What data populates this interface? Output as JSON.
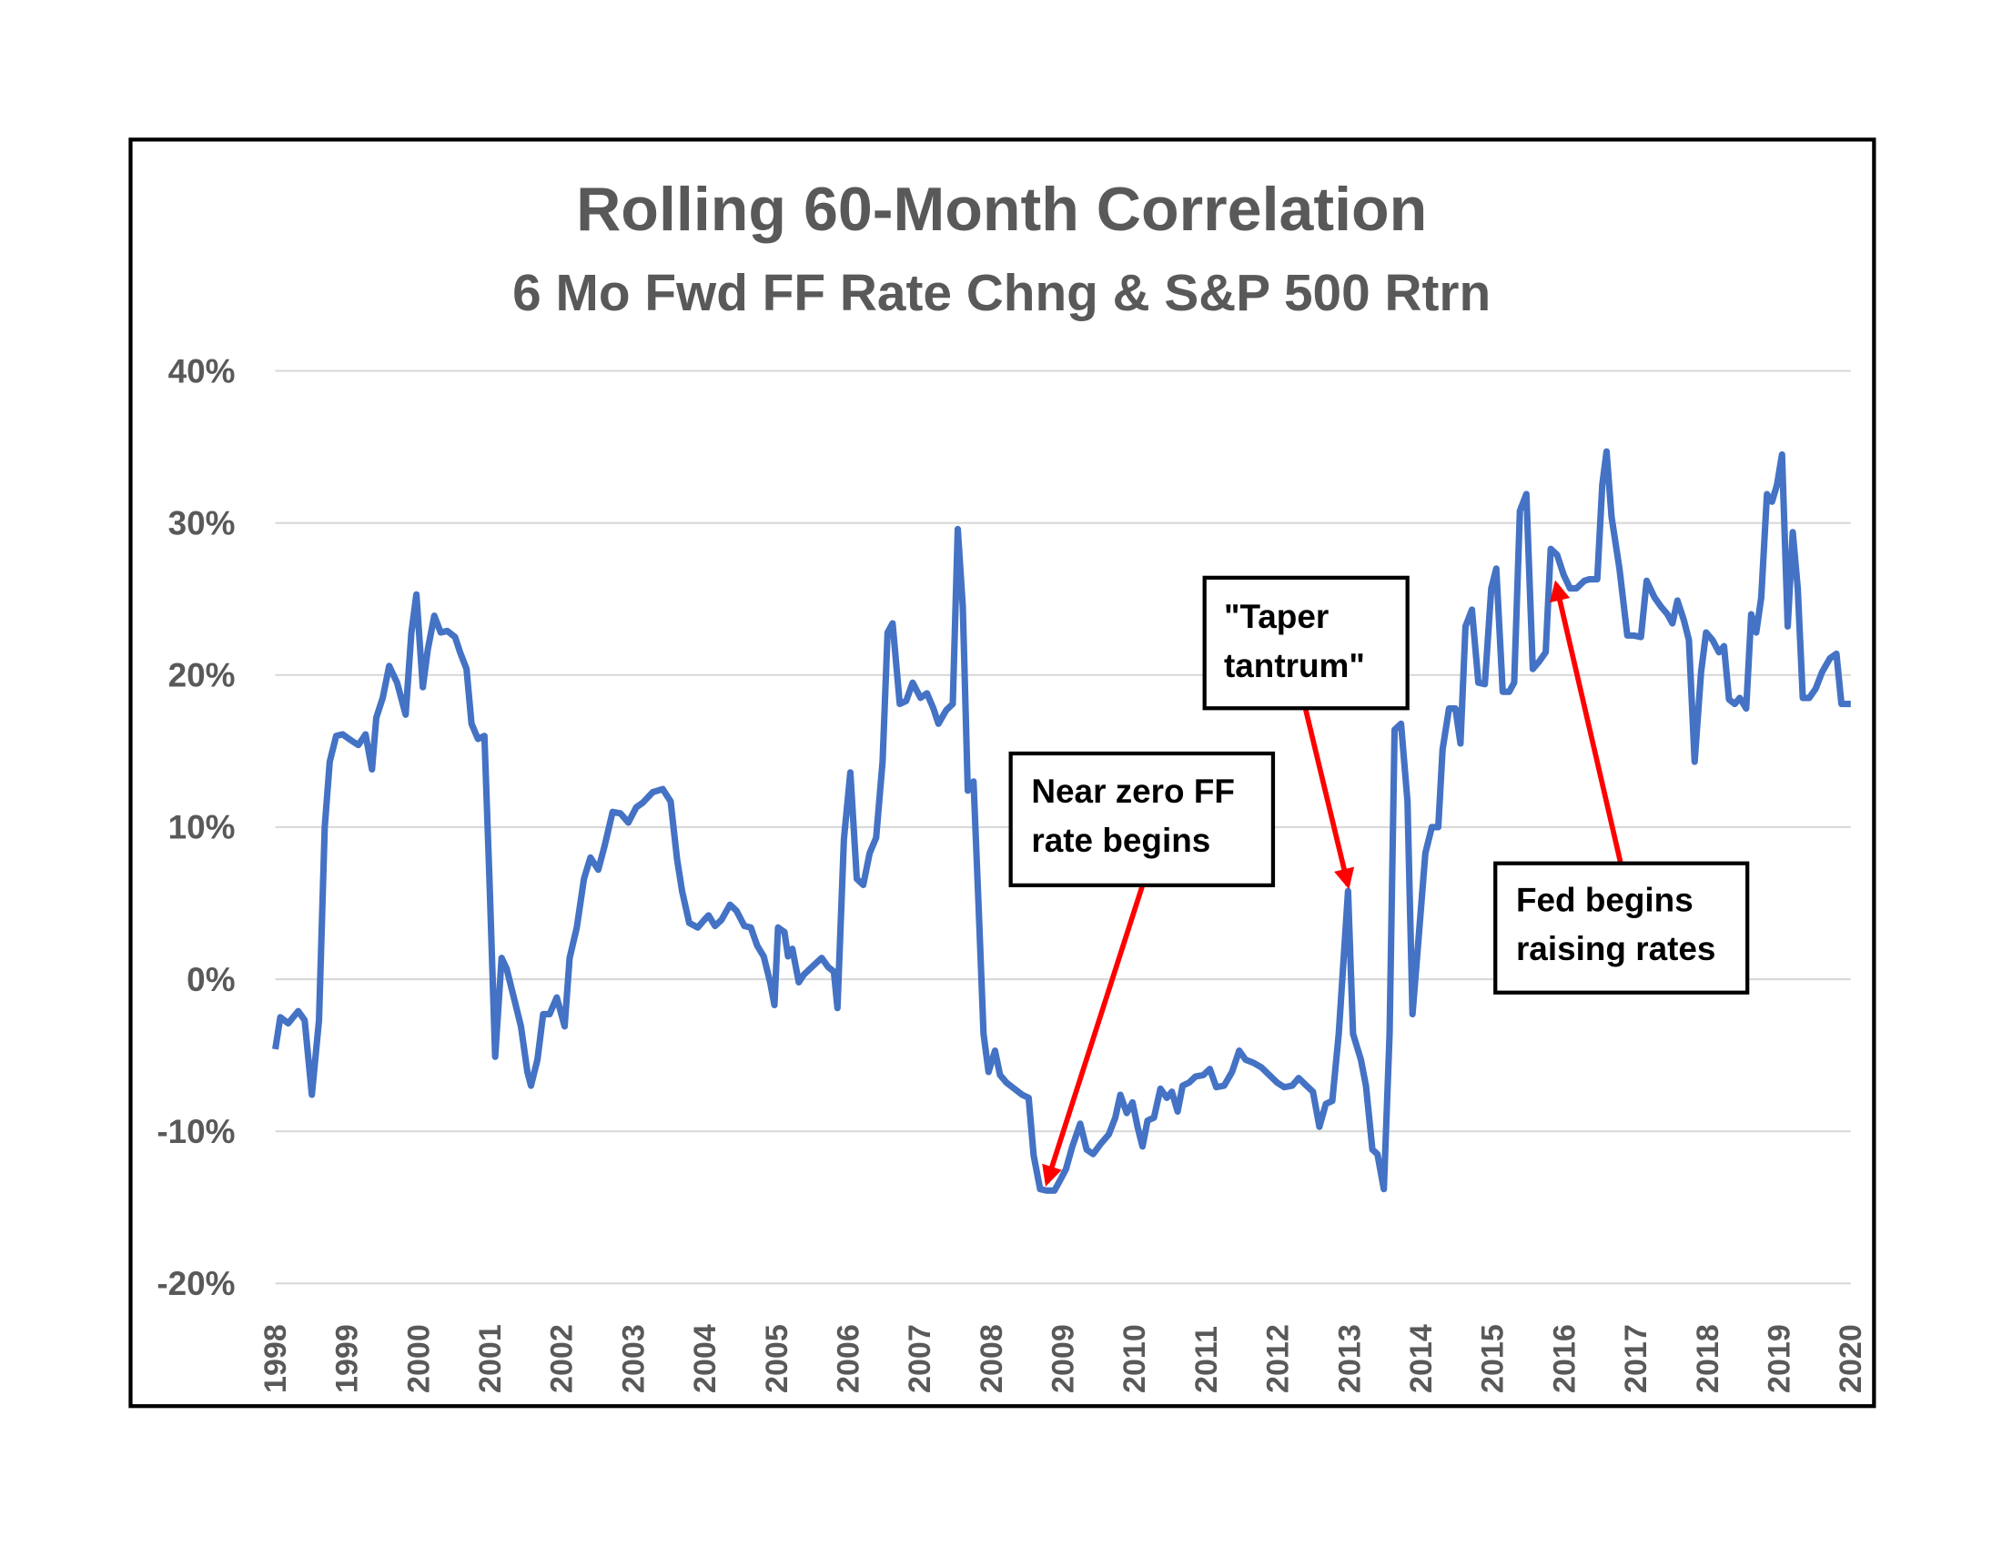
{
  "chart_data": {
    "type": "line",
    "title": "Rolling 60-Month Correlation",
    "subtitle": "6 Mo Fwd FF Rate Chng & S&P 500 Rtrn",
    "xlim": [
      1998,
      2020
    ],
    "xticks": [
      1998,
      1999,
      2000,
      2001,
      2002,
      2003,
      2004,
      2005,
      2006,
      2007,
      2008,
      2009,
      2010,
      2011,
      2012,
      2013,
      2014,
      2015,
      2016,
      2017,
      2018,
      2019,
      2020
    ],
    "ylim": [
      -20,
      40
    ],
    "yticks": [
      {
        "value": -20,
        "label": "-20%"
      },
      {
        "value": -10,
        "label": "-10%"
      },
      {
        "value": 0,
        "label": "0%"
      },
      {
        "value": 10,
        "label": "10%"
      },
      {
        "value": 20,
        "label": "20%"
      },
      {
        "value": 30,
        "label": "30%"
      },
      {
        "value": 40,
        "label": "40%"
      }
    ],
    "grid": true,
    "x": [
      1998.0,
      1998.07,
      1998.18,
      1998.32,
      1998.41,
      1998.51,
      1998.61,
      1998.69,
      1998.76,
      1998.85,
      1998.94,
      1999.06,
      1999.16,
      1999.26,
      1999.35,
      1999.41,
      1999.5,
      1999.59,
      1999.7,
      1999.82,
      1999.9,
      1999.97,
      2000.06,
      2000.13,
      2000.22,
      2000.31,
      2000.4,
      2000.51,
      2000.58,
      2000.67,
      2000.74,
      2000.83,
      2000.92,
      2000.99,
      2001.07,
      2001.16,
      2001.23,
      2001.32,
      2001.43,
      2001.52,
      2001.57,
      2001.66,
      2001.74,
      2001.83,
      2001.93,
      2002.04,
      2002.11,
      2002.21,
      2002.31,
      2002.4,
      2002.51,
      2002.6,
      2002.71,
      2002.82,
      2002.93,
      2003.04,
      2003.13,
      2003.27,
      2003.41,
      2003.52,
      2003.61,
      2003.68,
      2003.78,
      2003.9,
      2003.99,
      2004.05,
      2004.14,
      2004.23,
      2004.35,
      2004.44,
      2004.55,
      2004.64,
      2004.73,
      2004.82,
      2004.91,
      2004.97,
      2005.02,
      2005.11,
      2005.16,
      2005.22,
      2005.31,
      2005.38,
      2005.47,
      2005.56,
      2005.63,
      2005.72,
      2005.8,
      2005.85,
      2005.94,
      2006.03,
      2006.12,
      2006.21,
      2006.3,
      2006.39,
      2006.48,
      2006.55,
      2006.62,
      2006.72,
      2006.81,
      2006.9,
      2007.01,
      2007.1,
      2007.19,
      2007.26,
      2007.37,
      2007.46,
      2007.53,
      2007.6,
      2007.67,
      2007.75,
      2007.82,
      2007.89,
      2007.96,
      2008.05,
      2008.12,
      2008.21,
      2008.32,
      2008.43,
      2008.52,
      2008.59,
      2008.68,
      2008.77,
      2008.88,
      2008.95,
      2009.04,
      2009.13,
      2009.24,
      2009.33,
      2009.42,
      2009.53,
      2009.64,
      2009.73,
      2009.8,
      2009.89,
      2009.97,
      2010.04,
      2010.11,
      2010.18,
      2010.27,
      2010.36,
      2010.45,
      2010.52,
      2010.6,
      2010.67,
      2010.76,
      2010.85,
      2010.96,
      2011.05,
      2011.14,
      2011.25,
      2011.36,
      2011.46,
      2011.55,
      2011.66,
      2011.77,
      2011.88,
      2011.99,
      2012.09,
      2012.2,
      2012.29,
      2012.4,
      2012.49,
      2012.58,
      2012.67,
      2012.76,
      2012.85,
      2012.98,
      2013.05,
      2013.16,
      2013.23,
      2013.32,
      2013.39,
      2013.48,
      2013.56,
      2013.63,
      2013.72,
      2013.81,
      2013.88,
      2013.96,
      2014.06,
      2014.15,
      2014.24,
      2014.3,
      2014.39,
      2014.48,
      2014.55,
      2014.62,
      2014.71,
      2014.8,
      2014.89,
      2014.98,
      2015.05,
      2015.14,
      2015.23,
      2015.3,
      2015.38,
      2015.47,
      2015.56,
      2015.65,
      2015.74,
      2015.81,
      2015.9,
      2015.99,
      2016.08,
      2016.17,
      2016.28,
      2016.35,
      2016.46,
      2016.53,
      2016.59,
      2016.66,
      2016.77,
      2016.88,
      2016.97,
      2017.07,
      2017.15,
      2017.26,
      2017.35,
      2017.44,
      2017.51,
      2017.58,
      2017.67,
      2017.74,
      2017.82,
      2017.91,
      2017.98,
      2018.07,
      2018.16,
      2018.23,
      2018.3,
      2018.38,
      2018.45,
      2018.54,
      2018.61,
      2018.68,
      2018.75,
      2018.83,
      2018.9,
      2018.97,
      2019.04,
      2019.12,
      2019.19,
      2019.26,
      2019.33,
      2019.42,
      2019.51,
      2019.6,
      2019.71,
      2019.8,
      2019.87,
      2020.0
    ],
    "series": [
      {
        "color": "#4472c4",
        "values": [
          -4.6,
          -2.5,
          -2.9,
          -2.1,
          -2.7,
          -7.6,
          -2.7,
          10.0,
          14.3,
          16.0,
          16.1,
          15.7,
          15.4,
          16.1,
          13.8,
          17.2,
          18.5,
          20.6,
          19.5,
          17.4,
          22.8,
          25.3,
          19.2,
          21.7,
          23.9,
          22.8,
          22.9,
          22.5,
          21.5,
          20.4,
          16.8,
          15.8,
          16.0,
          6.6,
          -5.1,
          1.4,
          0.7,
          -1.0,
          -3.1,
          -6.1,
          -7.0,
          -5.3,
          -2.3,
          -2.3,
          -1.2,
          -3.1,
          1.4,
          3.4,
          6.6,
          8.0,
          7.2,
          8.8,
          11.0,
          10.9,
          10.3,
          11.3,
          11.6,
          12.3,
          12.5,
          11.7,
          7.9,
          5.8,
          3.7,
          3.4,
          3.9,
          4.2,
          3.5,
          3.9,
          4.9,
          4.5,
          3.5,
          3.4,
          2.2,
          1.5,
          -0.2,
          -1.7,
          3.4,
          3.1,
          1.5,
          2.0,
          -0.2,
          0.3,
          0.7,
          1.1,
          1.4,
          0.8,
          0.5,
          -1.9,
          9.2,
          13.6,
          6.6,
          6.2,
          8.3,
          9.3,
          14.3,
          22.8,
          23.4,
          18.1,
          18.3,
          19.5,
          18.5,
          18.8,
          17.8,
          16.8,
          17.7,
          18.1,
          29.6,
          24.5,
          12.4,
          13.0,
          4.9,
          -3.6,
          -6.1,
          -4.7,
          -6.3,
          -6.8,
          -7.2,
          -7.6,
          -7.8,
          -11.6,
          -13.8,
          -13.9,
          -13.9,
          -13.3,
          -12.5,
          -11.0,
          -9.5,
          -11.2,
          -11.5,
          -10.8,
          -10.2,
          -9.1,
          -7.6,
          -8.8,
          -8.1,
          -9.7,
          -11.0,
          -9.3,
          -9.1,
          -7.2,
          -7.8,
          -7.4,
          -8.7,
          -7.0,
          -6.8,
          -6.4,
          -6.3,
          -5.9,
          -7.1,
          -7.0,
          -6.1,
          -4.7,
          -5.3,
          -5.5,
          -5.8,
          -6.3,
          -6.8,
          -7.1,
          -7.0,
          -6.5,
          -7.0,
          -7.4,
          -9.7,
          -8.2,
          -8.0,
          -3.6,
          5.8,
          -3.6,
          -5.3,
          -7.0,
          -11.2,
          -11.5,
          -13.8,
          -3.6,
          16.4,
          16.8,
          11.7,
          -2.3,
          2.4,
          8.3,
          10.0,
          10.0,
          15.1,
          17.8,
          17.8,
          15.5,
          23.2,
          24.3,
          19.5,
          19.4,
          25.7,
          27.0,
          18.9,
          18.9,
          19.5,
          30.8,
          31.9,
          20.4,
          20.9,
          21.5,
          28.3,
          27.9,
          26.6,
          25.7,
          25.7,
          26.2,
          26.3,
          26.3,
          32.5,
          34.7,
          30.4,
          27.0,
          22.6,
          22.6,
          22.5,
          26.2,
          25.1,
          24.5,
          24.0,
          23.4,
          24.9,
          23.6,
          22.3,
          14.3,
          20.2,
          22.8,
          22.3,
          21.5,
          21.9,
          18.4,
          18.1,
          18.5,
          17.8,
          24.0,
          22.8,
          25.1,
          31.9,
          31.4,
          32.5,
          34.5,
          23.2,
          29.4,
          25.7,
          18.5,
          18.5,
          19.1,
          20.2,
          21.1,
          21.4,
          18.1,
          18.1
        ]
      }
    ],
    "annotations": [
      {
        "lines": [
          "Near zero FF",
          "rate begins"
        ]
      },
      {
        "lines": [
          "\"Taper",
          "tantrum\""
        ]
      },
      {
        "lines": [
          "Fed begins",
          "raising rates"
        ]
      }
    ]
  }
}
